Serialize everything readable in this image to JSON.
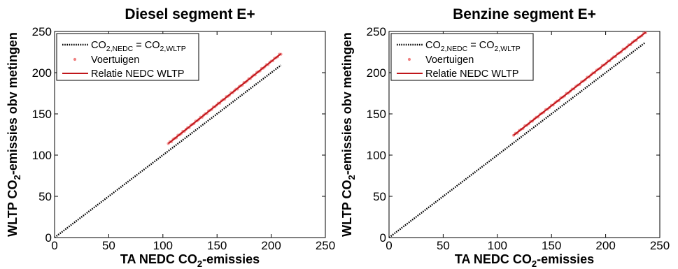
{
  "chart_data": [
    {
      "type": "line",
      "title": "Diesel segment E+",
      "xlabel": {
        "pre": "TA NEDC CO",
        "sub": "2",
        "post": "-emissies"
      },
      "ylabel": {
        "pre": "WLTP CO",
        "sub": "2",
        "post": "-emissies obv metingen"
      },
      "xlim": [
        0,
        250
      ],
      "ylim": [
        0,
        250
      ],
      "xticks": [
        "0",
        "50",
        "100",
        "150",
        "200",
        "250"
      ],
      "yticks": [
        "0",
        "50",
        "100",
        "150",
        "200",
        "250"
      ],
      "legend_position": "top-left",
      "legend": [
        {
          "pre": "CO",
          "sub1": "2,NEDC",
          "mid": " = CO",
          "sub2": "2,WLTP"
        },
        {
          "text": "Voertuigen"
        },
        {
          "text": "Relatie NEDC WLTP"
        }
      ],
      "series": [
        {
          "style": "dotted",
          "color": "#000000",
          "x": [
            0,
            209
          ],
          "y": [
            0,
            209
          ]
        },
        {
          "style": "markers",
          "color": "#f08080",
          "x_range": [
            105,
            209
          ],
          "y_range": [
            114,
            223
          ]
        },
        {
          "style": "solid",
          "color": "#c0161b",
          "x": [
            105,
            209
          ],
          "y": [
            114,
            223
          ]
        }
      ]
    },
    {
      "type": "line",
      "title": "Benzine segment E+",
      "xlabel": {
        "pre": "TA NEDC CO",
        "sub": "2",
        "post": "-emissies"
      },
      "ylabel": {
        "pre": "WLTP CO",
        "sub": "2",
        "post": "-emissies obv metingen"
      },
      "xlim": [
        0,
        250
      ],
      "ylim": [
        0,
        250
      ],
      "xticks": [
        "0",
        "50",
        "100",
        "150",
        "200",
        "250"
      ],
      "yticks": [
        "0",
        "50",
        "100",
        "150",
        "200",
        "250"
      ],
      "legend_position": "top-left",
      "legend": [
        {
          "pre": "CO",
          "sub1": "2,NEDC",
          "mid": " = CO",
          "sub2": "2,WLTP"
        },
        {
          "text": "Voertuigen"
        },
        {
          "text": "Relatie NEDC WLTP"
        }
      ],
      "series": [
        {
          "style": "dotted",
          "color": "#000000",
          "x": [
            0,
            236
          ],
          "y": [
            0,
            236
          ]
        },
        {
          "style": "markers",
          "color": "#f08080",
          "x_range": [
            115,
            237
          ],
          "y_range": [
            124,
            249
          ]
        },
        {
          "style": "solid",
          "color": "#c0161b",
          "x": [
            115,
            237
          ],
          "y": [
            124,
            249
          ]
        }
      ]
    }
  ]
}
